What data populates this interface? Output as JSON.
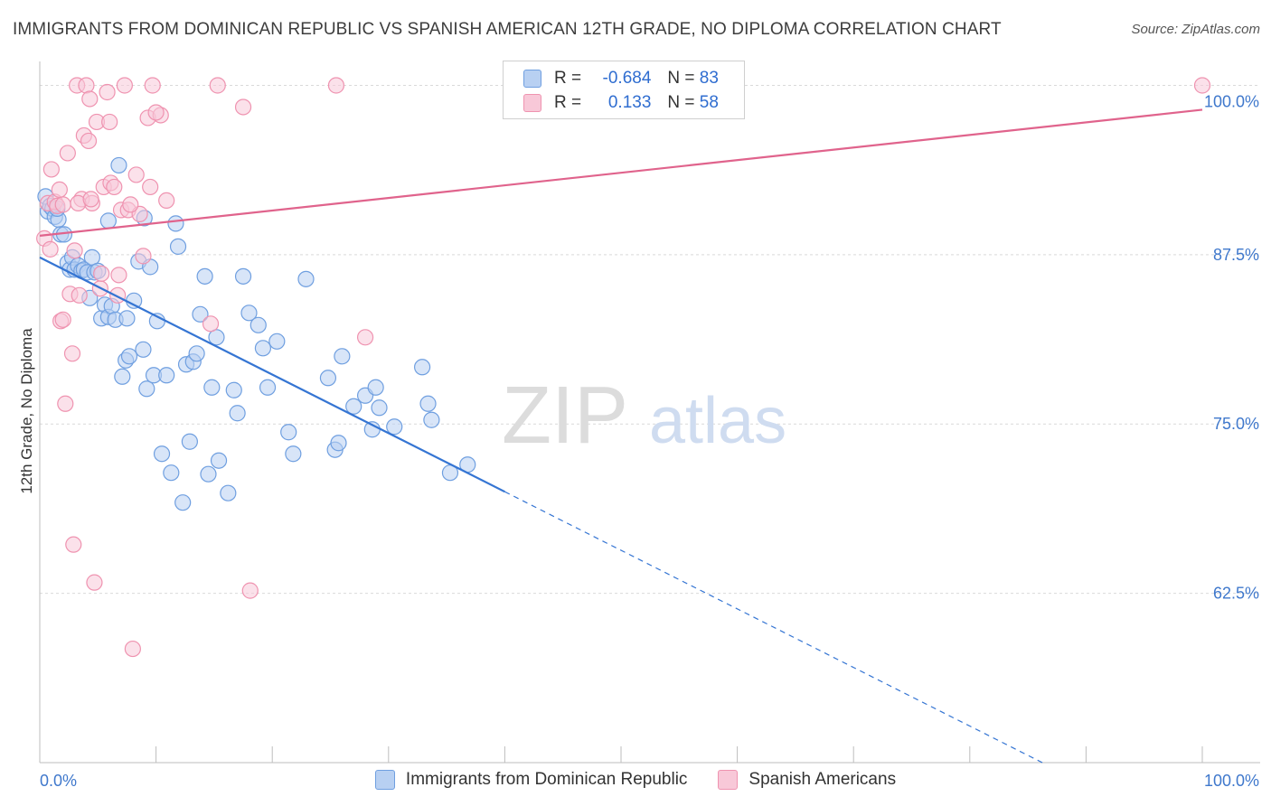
{
  "title": "IMMIGRANTS FROM DOMINICAN REPUBLIC VS SPANISH AMERICAN 12TH GRADE, NO DIPLOMA CORRELATION CHART",
  "source": "Source: ZipAtlas.com",
  "watermark": {
    "zip": "ZIP",
    "atlas": "atlas"
  },
  "legend_top": [
    {
      "r_label": "R =",
      "r_value": "-0.684",
      "n_label": "N =",
      "n_value": "83"
    },
    {
      "r_label": "R =",
      "r_value": "0.133",
      "n_label": "N =",
      "n_value": "58"
    }
  ],
  "chart_data": {
    "type": "scatter",
    "title": "IMMIGRANTS FROM DOMINICAN REPUBLIC VS SPANISH AMERICAN 12TH GRADE, NO DIPLOMA CORRELATION CHART",
    "xlabel": "",
    "ylabel": "12th Grade, No Diploma",
    "xlim": [
      0,
      100
    ],
    "ylim": [
      50,
      101.5
    ],
    "x_tick_labels": [
      "0.0%",
      "100.0%"
    ],
    "y_ticks": [
      62.5,
      75.0,
      87.5,
      100.0
    ],
    "y_tick_labels": [
      "62.5%",
      "75.0%",
      "87.5%",
      "100.0%"
    ],
    "grid": true,
    "legend_position": "bottom",
    "colors": {
      "blue": "#6f9fe0",
      "blue_fill": "#b8d0f2",
      "blue_line": "#3575d3",
      "pink": "#ef93b0",
      "pink_fill": "#f8c8d8",
      "pink_line": "#e0638c"
    },
    "series": [
      {
        "name": "Immigrants from Dominican Republic",
        "color": "#6f9fe0",
        "points": [
          [
            0.5,
            91.8
          ],
          [
            0.7,
            90.7
          ],
          [
            0.9,
            91.1
          ],
          [
            1.1,
            90.9
          ],
          [
            1.3,
            90.3
          ],
          [
            1.6,
            90.1
          ],
          [
            1.8,
            89.0
          ],
          [
            2.1,
            89.0
          ],
          [
            2.4,
            86.9
          ],
          [
            2.6,
            86.4
          ],
          [
            2.8,
            87.3
          ],
          [
            3.0,
            86.4
          ],
          [
            3.3,
            86.7
          ],
          [
            3.6,
            86.3
          ],
          [
            3.8,
            86.4
          ],
          [
            4.1,
            86.2
          ],
          [
            4.3,
            84.3
          ],
          [
            4.5,
            87.3
          ],
          [
            4.7,
            86.2
          ],
          [
            5.0,
            86.3
          ],
          [
            5.3,
            82.8
          ],
          [
            5.6,
            83.8
          ],
          [
            5.9,
            82.9
          ],
          [
            6.2,
            83.7
          ],
          [
            6.5,
            82.7
          ],
          [
            6.8,
            94.1
          ],
          [
            7.1,
            78.5
          ],
          [
            7.4,
            79.7
          ],
          [
            7.7,
            80.0
          ],
          [
            8.1,
            84.1
          ],
          [
            8.5,
            87.0
          ],
          [
            8.9,
            80.5
          ],
          [
            9.2,
            77.6
          ],
          [
            9.5,
            86.6
          ],
          [
            9.8,
            78.6
          ],
          [
            10.1,
            82.6
          ],
          [
            10.5,
            72.8
          ],
          [
            10.9,
            78.6
          ],
          [
            11.3,
            71.4
          ],
          [
            11.7,
            89.8
          ],
          [
            11.9,
            88.1
          ],
          [
            12.3,
            69.2
          ],
          [
            12.6,
            79.4
          ],
          [
            12.9,
            73.7
          ],
          [
            13.2,
            79.6
          ],
          [
            13.5,
            80.2
          ],
          [
            13.8,
            83.1
          ],
          [
            14.2,
            85.9
          ],
          [
            14.5,
            71.3
          ],
          [
            14.8,
            77.7
          ],
          [
            15.2,
            81.4
          ],
          [
            15.4,
            72.3
          ],
          [
            16.2,
            69.9
          ],
          [
            16.7,
            77.5
          ],
          [
            17.0,
            75.8
          ],
          [
            17.5,
            85.9
          ],
          [
            18.0,
            83.2
          ],
          [
            18.8,
            82.3
          ],
          [
            19.2,
            80.6
          ],
          [
            19.6,
            77.7
          ],
          [
            20.4,
            81.1
          ],
          [
            21.4,
            74.4
          ],
          [
            21.8,
            72.8
          ],
          [
            22.9,
            85.7
          ],
          [
            24.8,
            78.4
          ],
          [
            25.4,
            73.1
          ],
          [
            25.7,
            73.6
          ],
          [
            26.0,
            80.0
          ],
          [
            27.0,
            76.3
          ],
          [
            28.0,
            77.1
          ],
          [
            28.6,
            74.6
          ],
          [
            28.9,
            77.7
          ],
          [
            29.2,
            76.2
          ],
          [
            30.5,
            74.8
          ],
          [
            32.9,
            79.2
          ],
          [
            33.4,
            76.5
          ],
          [
            33.7,
            75.3
          ],
          [
            35.3,
            71.4
          ],
          [
            36.8,
            72.0
          ],
          [
            5.9,
            90.0
          ],
          [
            7.5,
            82.8
          ],
          [
            1.5,
            90.9
          ],
          [
            9.0,
            90.2
          ]
        ]
      },
      {
        "name": "Spanish Americans",
        "color": "#ef93b0",
        "points": [
          [
            0.4,
            88.7
          ],
          [
            0.7,
            91.3
          ],
          [
            1.0,
            93.8
          ],
          [
            1.3,
            91.4
          ],
          [
            1.5,
            91.1
          ],
          [
            1.8,
            82.6
          ],
          [
            2.0,
            91.2
          ],
          [
            2.2,
            76.5
          ],
          [
            2.4,
            95.0
          ],
          [
            2.6,
            84.6
          ],
          [
            2.8,
            80.2
          ],
          [
            3.0,
            87.8
          ],
          [
            3.2,
            100.0
          ],
          [
            3.4,
            84.5
          ],
          [
            3.6,
            91.6
          ],
          [
            3.8,
            96.3
          ],
          [
            4.0,
            100.0
          ],
          [
            4.2,
            95.9
          ],
          [
            4.3,
            99.0
          ],
          [
            4.5,
            91.3
          ],
          [
            4.7,
            63.3
          ],
          [
            4.9,
            97.3
          ],
          [
            5.2,
            85.0
          ],
          [
            5.5,
            92.5
          ],
          [
            5.8,
            99.5
          ],
          [
            6.1,
            92.8
          ],
          [
            6.4,
            92.5
          ],
          [
            6.7,
            84.5
          ],
          [
            7.0,
            90.8
          ],
          [
            7.3,
            100.0
          ],
          [
            7.6,
            90.8
          ],
          [
            8.0,
            58.4
          ],
          [
            8.3,
            93.4
          ],
          [
            8.6,
            90.5
          ],
          [
            8.9,
            87.4
          ],
          [
            9.3,
            97.6
          ],
          [
            9.7,
            100.0
          ],
          [
            10.4,
            97.8
          ],
          [
            10.9,
            91.5
          ],
          [
            14.7,
            82.4
          ],
          [
            15.3,
            100.0
          ],
          [
            17.5,
            98.4
          ],
          [
            18.1,
            62.7
          ],
          [
            25.5,
            100.0
          ],
          [
            28.0,
            81.4
          ],
          [
            100.0,
            100.0
          ],
          [
            9.5,
            92.5
          ],
          [
            6.8,
            86.0
          ],
          [
            2.9,
            66.1
          ],
          [
            3.3,
            91.3
          ],
          [
            4.4,
            91.6
          ],
          [
            0.9,
            87.9
          ],
          [
            5.3,
            86.1
          ],
          [
            2.0,
            82.7
          ],
          [
            7.8,
            91.2
          ],
          [
            1.7,
            92.3
          ],
          [
            10.0,
            98.0
          ],
          [
            6.0,
            97.3
          ]
        ]
      }
    ],
    "trend_lines": [
      {
        "series": "Immigrants from Dominican Republic",
        "x": [
          0,
          40
        ],
        "y": [
          87.3,
          70.0
        ],
        "dashed_extension_to_x": 86.5
      },
      {
        "series": "Spanish Americans",
        "x": [
          0,
          100
        ],
        "y": [
          88.9,
          98.2
        ]
      }
    ]
  },
  "legend_bottom": [
    {
      "label": "Immigrants from Dominican Republic"
    },
    {
      "label": "Spanish Americans"
    }
  ]
}
